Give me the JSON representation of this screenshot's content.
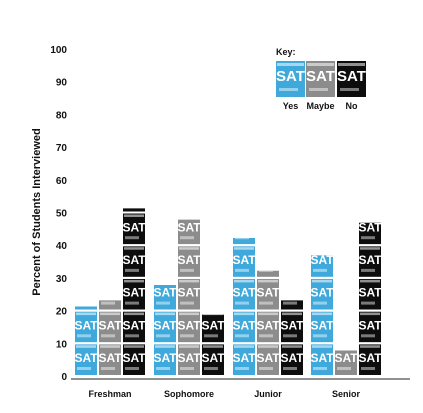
{
  "chart_data": {
    "type": "bar",
    "ylabel": "Percent of Students Interviewed",
    "ylim": [
      0,
      100
    ],
    "yticks": [
      0,
      10,
      20,
      30,
      40,
      50,
      60,
      70,
      80,
      90,
      100
    ],
    "categories": [
      "Freshman",
      "Sophomore",
      "Junior",
      "Senior"
    ],
    "icon_text": "SAT",
    "key_title": "Key:",
    "series": [
      {
        "name": "Yes",
        "color": "#3fa9dc",
        "values": [
          21,
          28,
          42,
          37
        ]
      },
      {
        "name": "Maybe",
        "color": "#8c8c8c",
        "values": [
          23,
          48,
          32,
          8
        ]
      },
      {
        "name": "No",
        "color": "#0d0d0d",
        "values": [
          51,
          19,
          23,
          47
        ]
      }
    ],
    "legend_position": "top-right",
    "grid": false
  }
}
